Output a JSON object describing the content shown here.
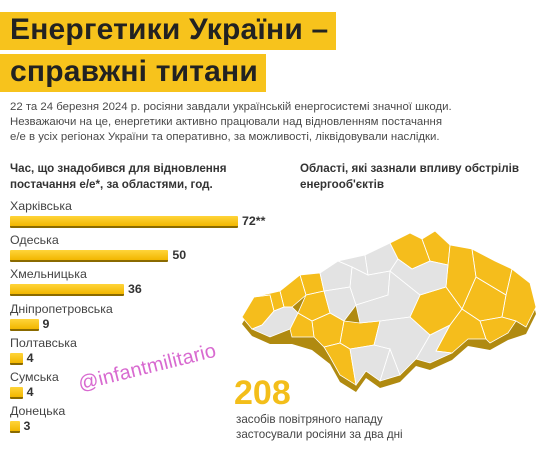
{
  "header": {
    "title_line1": "Енергетики України –",
    "title_line2": "справжні титани"
  },
  "intro": {
    "line1": "22 та 24 березня 2024 р. росіяни завдали українській енергосистемі значної шкоди.",
    "line2": "Незважаючи на це, енергетики активно працювали над відновленням постачання",
    "line3": "е/е в усіх регіонах України та оперативно, за можливості, ліквідовували наслідки."
  },
  "chart_data": {
    "type": "bar",
    "orientation": "horizontal",
    "title": "Час, що знадобився для відновлення постачання е/е*, за областями, год.",
    "categories": [
      "Харківська",
      "Одеська",
      "Хмельницька",
      "Дніпропетровська",
      "Полтавська",
      "Сумська",
      "Донецька"
    ],
    "values": [
      72,
      50,
      36,
      9,
      4,
      4,
      3
    ],
    "value_labels": [
      "72**",
      "50",
      "36",
      "9",
      "4",
      "4",
      "3"
    ],
    "xlim": [
      0,
      72
    ],
    "grid": false,
    "legend": "none"
  },
  "map": {
    "title": "Області, які зазнали впливу обстрілів енергооб'єктів",
    "colors": {
      "affected": "#f5bd1c",
      "not_affected": "#e3e3e3",
      "edge": "#b08a10"
    }
  },
  "stat": {
    "number": "208",
    "caption_line1": "засобів повітряного нападу",
    "caption_line2": "застосували росіяни за два дні"
  },
  "watermark": {
    "text": "@infantmilitario"
  }
}
